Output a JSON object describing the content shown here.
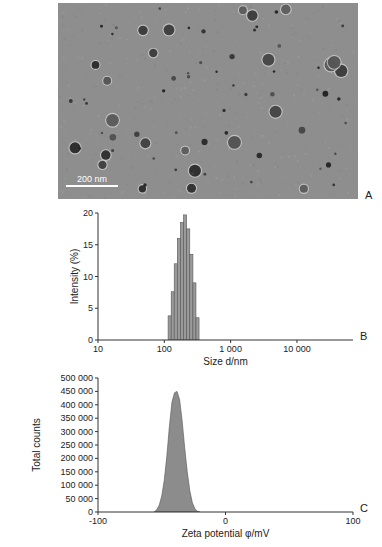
{
  "chart_data": [
    {
      "type": "image",
      "title": "A",
      "annotations": [
        "200 nm"
      ]
    },
    {
      "type": "histogram",
      "title": "B",
      "x_label": "Size d/nm",
      "y_label": "Intensity (%)",
      "bins": [
        114,
        127,
        141,
        157,
        175,
        195,
        217,
        242,
        270,
        300,
        334
      ],
      "values": [
        3.8,
        7.6,
        12,
        16,
        18.5,
        19.7,
        17.5,
        13.5,
        9,
        3.5
      ],
      "color": "#9a9a9a",
      "log": "x",
      "xlim": [
        10,
        70000
      ],
      "xticks": [
        10,
        100,
        {
          "value": 1000,
          "label": "1 000"
        },
        {
          "value": 10000,
          "label": "10 000"
        }
      ],
      "ylim": [
        0,
        20
      ],
      "yticks": [
        0,
        5,
        10,
        15,
        20
      ],
      "grid": false
    },
    {
      "type": "area",
      "title": "C",
      "x_label": "Zeta potential φ/mV",
      "y_label": "Total counts",
      "x": [
        -56,
        -54,
        -52,
        -50,
        -48,
        -46,
        -44,
        -42,
        -40,
        -38,
        -36,
        -34,
        -32,
        -30,
        -28,
        -26,
        -24,
        -22,
        -20
      ],
      "values": [
        0,
        8000,
        25000,
        60000,
        120000,
        210000,
        320000,
        410000,
        445000,
        450000,
        420000,
        340000,
        240000,
        150000,
        80000,
        35000,
        12000,
        3000,
        0
      ],
      "color": "#8c8c8c",
      "xlim": [
        -100,
        100
      ],
      "xticks": [
        -100,
        0,
        100
      ],
      "ylim": [
        0,
        500000
      ],
      "yticks": [
        0,
        {
          "value": 50000,
          "label": "50 000"
        },
        {
          "value": 100000,
          "label": "100 000"
        },
        {
          "value": 150000,
          "label": "150 000"
        },
        {
          "value": 200000,
          "label": "200 000"
        },
        {
          "value": 250000,
          "label": "250 000"
        },
        {
          "value": 300000,
          "label": "300 000"
        },
        {
          "value": 350000,
          "label": "350 000"
        },
        {
          "value": 400000,
          "label": "400 000"
        },
        {
          "value": 450000,
          "label": "450 000"
        },
        {
          "value": 500000,
          "label": "500 000"
        }
      ],
      "grid": false
    }
  ]
}
